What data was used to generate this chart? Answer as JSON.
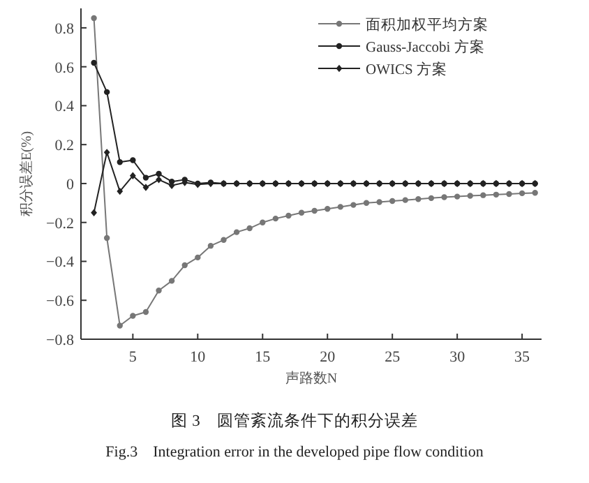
{
  "chart_data": {
    "type": "line",
    "xlabel": "声路数N",
    "ylabel": "积分误差E(%)",
    "x": [
      2,
      3,
      4,
      5,
      6,
      7,
      8,
      9,
      10,
      11,
      12,
      13,
      14,
      15,
      16,
      17,
      18,
      19,
      20,
      21,
      22,
      23,
      24,
      25,
      26,
      27,
      28,
      29,
      30,
      31,
      32,
      33,
      34,
      35,
      36
    ],
    "series": [
      {
        "name": "面积加权平均方案",
        "color": "#777777",
        "marker": "circle",
        "values": [
          0.85,
          -0.28,
          -0.73,
          -0.68,
          -0.66,
          -0.55,
          -0.5,
          -0.42,
          -0.38,
          -0.32,
          -0.29,
          -0.25,
          -0.23,
          -0.2,
          -0.18,
          -0.165,
          -0.15,
          -0.14,
          -0.13,
          -0.12,
          -0.11,
          -0.1,
          -0.095,
          -0.09,
          -0.085,
          -0.08,
          -0.075,
          -0.07,
          -0.067,
          -0.063,
          -0.06,
          -0.057,
          -0.054,
          -0.05,
          -0.048
        ]
      },
      {
        "name": "Gauss-Jaccobi 方案",
        "color": "#222222",
        "marker": "circle",
        "values": [
          0.62,
          0.47,
          0.11,
          0.12,
          0.03,
          0.05,
          0.01,
          0.02,
          0,
          0.005,
          0,
          0,
          0,
          0,
          0,
          0,
          0,
          0,
          0,
          0,
          0,
          0,
          0,
          0,
          0,
          0,
          0,
          0,
          0,
          0,
          0,
          0,
          0,
          0,
          0
        ]
      },
      {
        "name": "OWICS 方案",
        "color": "#222222",
        "marker": "diamond",
        "values": [
          -0.15,
          0.16,
          -0.04,
          0.04,
          -0.02,
          0.02,
          -0.01,
          0.005,
          -0.005,
          0,
          0,
          0,
          0,
          0,
          0,
          0,
          0,
          0,
          0,
          0,
          0,
          0,
          0,
          0,
          0,
          0,
          0,
          0,
          0,
          0,
          0,
          0,
          0,
          0,
          0
        ]
      }
    ],
    "xlim": [
      1,
      36.5
    ],
    "xticks": [
      5,
      10,
      15,
      20,
      25,
      30,
      35
    ],
    "ylim": [
      -0.8,
      0.9
    ],
    "yticks": [
      -0.8,
      -0.6,
      -0.4,
      -0.2,
      0,
      0.2,
      0.4,
      0.6,
      0.8
    ],
    "grid": false,
    "legend": "top right",
    "annotations": [
      "图 3　圆管紊流条件下的积分误差",
      "Fig.3　Integration error in the developed pipe flow condition"
    ]
  }
}
